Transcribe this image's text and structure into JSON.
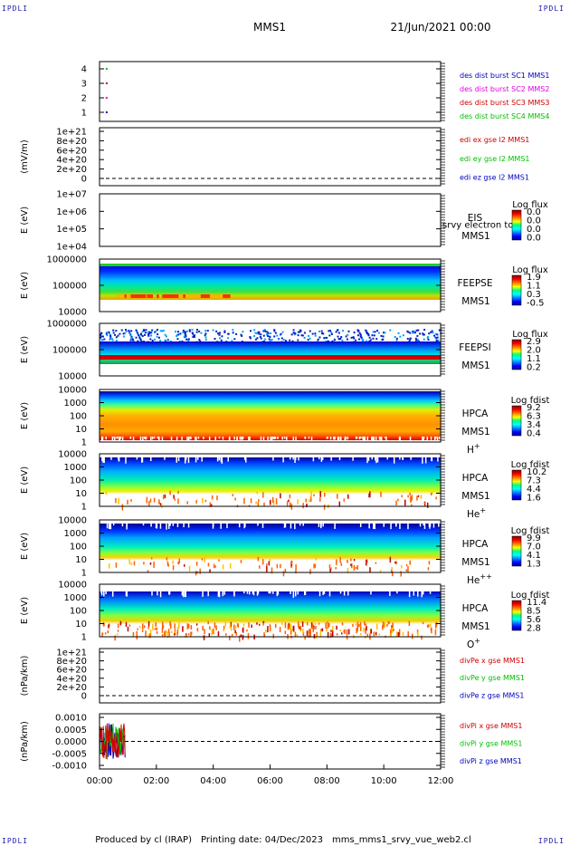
{
  "corners": {
    "tl": "IPDLI",
    "tr": "IPDLI",
    "bl": "IPDLI",
    "br": "IPDLI"
  },
  "header": {
    "mission": "MMS1",
    "datetime": "21/Jun/2021 00:00"
  },
  "footer": {
    "produced": "Produced by cl (IRAP)",
    "printing": "Printing date: 04/Dec/2023",
    "file": "mms_mms1_srvy_vue_web2.cl"
  },
  "x_ticks": [
    "00:00",
    "02:00",
    "04:00",
    "06:00",
    "08:00",
    "10:00",
    "12:00"
  ],
  "colors": {
    "red": "#d00000",
    "magenta": "#e000e0",
    "green": "#00c000",
    "blue": "#0000c0"
  },
  "chart_data": [
    {
      "type": "scatter",
      "id": "des",
      "ylabel": "",
      "yticks": [
        "4",
        "3",
        "2",
        "1"
      ],
      "legend": [
        {
          "name": "des dist burst SC1 MMS1",
          "color": "blue"
        },
        {
          "name": "des dist burst SC2 MMS2",
          "color": "magenta"
        },
        {
          "name": "des dist burst SC3 MMS3",
          "color": "red"
        },
        {
          "name": "des dist burst SC4 MMS4",
          "color": "green"
        }
      ],
      "points": [
        {
          "x": "00:15",
          "y": 4
        },
        {
          "x": "00:15",
          "y": 3
        },
        {
          "x": "00:15",
          "y": 2
        },
        {
          "x": "00:15",
          "y": 1
        }
      ]
    },
    {
      "type": "line",
      "id": "edi",
      "ylabel": "(mV/m)",
      "yticks": [
        "1e+21",
        "8e+20",
        "6e+20",
        "4e+20",
        "2e+20",
        "0"
      ],
      "legend": [
        {
          "name": "edi ex gse l2 MMS1",
          "color": "red"
        },
        {
          "name": "edi ey gse l2 MMS1",
          "color": "green"
        },
        {
          "name": "edi ez gse l2 MMS1",
          "color": "blue"
        }
      ]
    },
    {
      "type": "heatmap",
      "id": "eis",
      "ylabel": "E (eV)",
      "yticks": [
        "1e+07",
        "1e+06",
        "1e+05",
        "1e+04"
      ],
      "labels": [
        "EIS",
        "MMS1"
      ],
      "overlay": "srvy electron tof",
      "cbar_title": "Log flux",
      "cbar_ticks": [
        "0.0",
        "0.0",
        "0.0",
        "0.0"
      ]
    },
    {
      "type": "heatmap",
      "id": "feepse",
      "ylabel": "E (eV)",
      "yticks": [
        "1000000",
        "100000",
        "10000"
      ],
      "labels": [
        "FEEPSE",
        "MMS1"
      ],
      "cbar_title": "Log flux",
      "cbar_ticks": [
        "1.9",
        "1.1",
        "0.3",
        "-0.5"
      ]
    },
    {
      "type": "heatmap",
      "id": "feepsi",
      "ylabel": "E (eV)",
      "yticks": [
        "1000000",
        "100000",
        "10000"
      ],
      "labels": [
        "FEEPSI",
        "MMS1"
      ],
      "cbar_title": "Log flux",
      "cbar_ticks": [
        "2.9",
        "2.0",
        "1.1",
        "0.2"
      ]
    },
    {
      "type": "heatmap",
      "id": "hpca_h",
      "ylabel": "E (eV)",
      "yticks": [
        "10000",
        "1000",
        "100",
        "10",
        "1"
      ],
      "labels": [
        "HPCA",
        "MMS1"
      ],
      "species": "H",
      "charge": "+",
      "cbar_title": "Log fdist",
      "cbar_ticks": [
        "9.2",
        "6.3",
        "3.4",
        "0.4"
      ]
    },
    {
      "type": "heatmap",
      "id": "hpca_he",
      "ylabel": "E (eV)",
      "yticks": [
        "10000",
        "1000",
        "100",
        "10",
        "1"
      ],
      "labels": [
        "HPCA",
        "MMS1"
      ],
      "species": "He",
      "charge": "+",
      "cbar_title": "Log fdist",
      "cbar_ticks": [
        "10.2",
        "7.3",
        "4.4",
        "1.6"
      ]
    },
    {
      "type": "heatmap",
      "id": "hpca_hepp",
      "ylabel": "E (eV)",
      "yticks": [
        "10000",
        "1000",
        "100",
        "10",
        "1"
      ],
      "labels": [
        "HPCA",
        "MMS1"
      ],
      "species": "He",
      "charge": "++",
      "cbar_title": "Log fdist",
      "cbar_ticks": [
        "9.9",
        "7.0",
        "4.1",
        "1.3"
      ]
    },
    {
      "type": "heatmap",
      "id": "hpca_o",
      "ylabel": "E (eV)",
      "yticks": [
        "10000",
        "1000",
        "100",
        "10",
        "1"
      ],
      "labels": [
        "HPCA",
        "MMS1"
      ],
      "species": "O",
      "charge": "+",
      "cbar_title": "Log fdist",
      "cbar_ticks": [
        "11.4",
        "8.5",
        "5.6",
        "2.8"
      ]
    },
    {
      "type": "line",
      "id": "divpe",
      "ylabel": "(nPa/km)",
      "yticks": [
        "1e+21",
        "8e+20",
        "6e+20",
        "4e+20",
        "2e+20",
        "0"
      ],
      "legend": [
        {
          "name": "divPe x gse MMS1",
          "color": "red"
        },
        {
          "name": "divPe y gse MMS1",
          "color": "green"
        },
        {
          "name": "divPe z gse MMS1",
          "color": "blue"
        }
      ]
    },
    {
      "type": "line",
      "id": "divpi",
      "ylabel": "(nPa/km)",
      "yticks": [
        "0.0010",
        "0.0005",
        "0.0000",
        "-0.0005",
        "-0.0010"
      ],
      "legend": [
        {
          "name": "divPi x gse MMS1",
          "color": "red"
        },
        {
          "name": "divPi y gse MMS1",
          "color": "green"
        },
        {
          "name": "divPi z gse MMS1",
          "color": "blue"
        }
      ],
      "data_range": {
        "x": [
          "00:00",
          "00:55"
        ],
        "y": [
          -0.0008,
          0.0008
        ]
      }
    }
  ]
}
